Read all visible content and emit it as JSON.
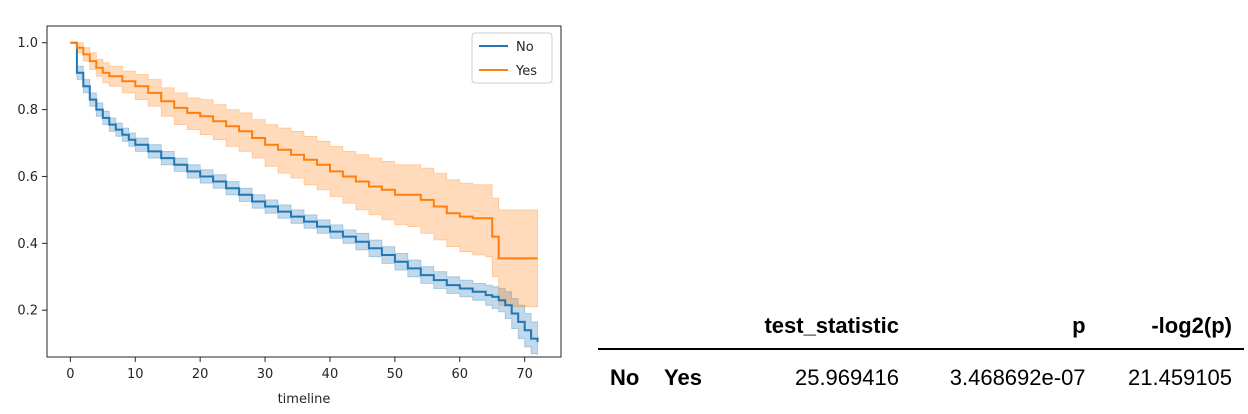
{
  "chart_data": {
    "type": "line",
    "xlabel": "timeline",
    "xlim": [
      -3.6,
      75.6
    ],
    "ylim": [
      0.06,
      1.05
    ],
    "xticks": [
      0,
      10,
      20,
      30,
      40,
      50,
      60,
      70
    ],
    "yticks": [
      0.2,
      0.4,
      0.6,
      0.8,
      1.0
    ],
    "xtick_labels": [
      "0",
      "10",
      "20",
      "30",
      "40",
      "50",
      "60",
      "70"
    ],
    "ytick_labels": [
      "0.2",
      "0.4",
      "0.6",
      "0.8",
      "1.0"
    ],
    "legend_position": "top-right",
    "grid": false,
    "step": true,
    "series": [
      {
        "name": "No",
        "color": "#1f77b4",
        "x": [
          0,
          1,
          2,
          3,
          4,
          5,
          6,
          7,
          8,
          9,
          10,
          12,
          14,
          16,
          18,
          20,
          22,
          24,
          26,
          28,
          30,
          32,
          34,
          36,
          38,
          40,
          42,
          44,
          46,
          48,
          50,
          52,
          54,
          56,
          58,
          60,
          62,
          64,
          65,
          66,
          67,
          68,
          69,
          70,
          71,
          72
        ],
        "y": [
          1.0,
          0.91,
          0.87,
          0.83,
          0.8,
          0.775,
          0.755,
          0.74,
          0.725,
          0.71,
          0.695,
          0.675,
          0.655,
          0.635,
          0.615,
          0.6,
          0.585,
          0.565,
          0.545,
          0.525,
          0.51,
          0.495,
          0.48,
          0.465,
          0.45,
          0.435,
          0.42,
          0.405,
          0.385,
          0.365,
          0.345,
          0.325,
          0.305,
          0.29,
          0.275,
          0.265,
          0.255,
          0.245,
          0.24,
          0.23,
          0.215,
          0.19,
          0.165,
          0.14,
          0.115,
          0.105
        ],
        "lower": [
          1.0,
          0.89,
          0.85,
          0.81,
          0.78,
          0.755,
          0.735,
          0.72,
          0.705,
          0.69,
          0.675,
          0.655,
          0.635,
          0.615,
          0.595,
          0.58,
          0.565,
          0.545,
          0.525,
          0.505,
          0.49,
          0.475,
          0.46,
          0.445,
          0.43,
          0.415,
          0.4,
          0.38,
          0.36,
          0.34,
          0.32,
          0.3,
          0.28,
          0.265,
          0.25,
          0.24,
          0.23,
          0.215,
          0.205,
          0.195,
          0.175,
          0.145,
          0.115,
          0.09,
          0.07,
          0.065
        ],
        "upper": [
          1.0,
          0.93,
          0.89,
          0.85,
          0.82,
          0.795,
          0.775,
          0.76,
          0.745,
          0.73,
          0.715,
          0.695,
          0.675,
          0.655,
          0.635,
          0.62,
          0.605,
          0.585,
          0.565,
          0.545,
          0.53,
          0.515,
          0.5,
          0.485,
          0.47,
          0.455,
          0.44,
          0.43,
          0.41,
          0.39,
          0.37,
          0.35,
          0.33,
          0.315,
          0.3,
          0.29,
          0.28,
          0.275,
          0.27,
          0.265,
          0.255,
          0.235,
          0.215,
          0.19,
          0.165,
          0.155
        ]
      },
      {
        "name": "Yes",
        "color": "#ff7f0e",
        "x": [
          0,
          1,
          2,
          3,
          4,
          5,
          6,
          8,
          10,
          12,
          14,
          16,
          18,
          20,
          22,
          24,
          26,
          28,
          30,
          32,
          34,
          36,
          38,
          40,
          42,
          44,
          46,
          48,
          50,
          52,
          54,
          56,
          58,
          60,
          62,
          64,
          65,
          66,
          68,
          70,
          72
        ],
        "y": [
          1.0,
          0.985,
          0.965,
          0.945,
          0.925,
          0.91,
          0.9,
          0.885,
          0.87,
          0.85,
          0.825,
          0.805,
          0.79,
          0.78,
          0.765,
          0.75,
          0.735,
          0.715,
          0.695,
          0.68,
          0.665,
          0.65,
          0.635,
          0.615,
          0.6,
          0.585,
          0.57,
          0.56,
          0.545,
          0.545,
          0.53,
          0.51,
          0.49,
          0.48,
          0.475,
          0.475,
          0.42,
          0.355,
          0.355,
          0.355,
          0.355
        ],
        "lower": [
          1.0,
          0.97,
          0.945,
          0.92,
          0.9,
          0.88,
          0.87,
          0.85,
          0.83,
          0.81,
          0.78,
          0.755,
          0.74,
          0.725,
          0.71,
          0.69,
          0.675,
          0.655,
          0.63,
          0.61,
          0.595,
          0.575,
          0.56,
          0.54,
          0.52,
          0.5,
          0.485,
          0.47,
          0.455,
          0.45,
          0.43,
          0.41,
          0.39,
          0.375,
          0.365,
          0.36,
          0.3,
          0.215,
          0.21,
          0.21,
          0.21
        ],
        "upper": [
          1.0,
          1.0,
          0.985,
          0.97,
          0.95,
          0.94,
          0.93,
          0.915,
          0.905,
          0.89,
          0.865,
          0.85,
          0.835,
          0.83,
          0.815,
          0.8,
          0.79,
          0.77,
          0.755,
          0.745,
          0.735,
          0.72,
          0.705,
          0.69,
          0.675,
          0.665,
          0.655,
          0.645,
          0.635,
          0.635,
          0.625,
          0.61,
          0.59,
          0.58,
          0.575,
          0.575,
          0.535,
          0.5,
          0.5,
          0.5,
          0.5
        ]
      }
    ]
  },
  "stats_table": {
    "columns": [
      "",
      "",
      "test_statistic",
      "p",
      "-log2(p)"
    ],
    "rows": [
      {
        "label_a": "No",
        "label_b": "Yes",
        "test_statistic": "25.969416",
        "p": "3.468692e-07",
        "neg_log2_p": "21.459105"
      }
    ]
  }
}
